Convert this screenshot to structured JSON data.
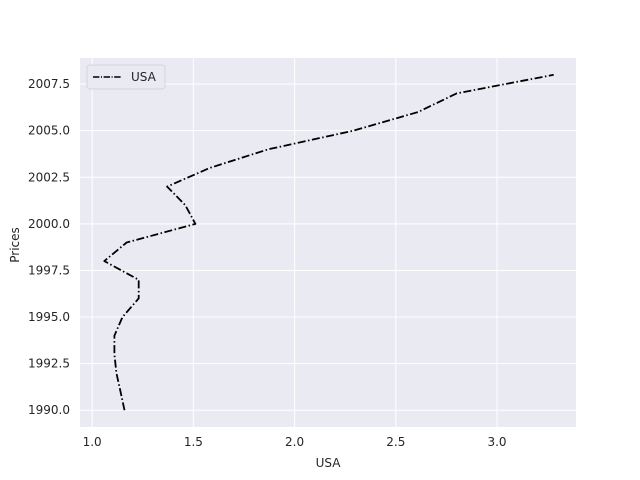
{
  "chart_data": {
    "type": "line",
    "title": "",
    "xlabel": "USA",
    "ylabel": "Prices",
    "xlim": [
      0.94,
      3.39
    ],
    "ylim": [
      1989.1,
      2008.9
    ],
    "xticks": [
      1.0,
      1.5,
      2.0,
      2.5,
      3.0
    ],
    "xtick_labels": [
      "1.0",
      "1.5",
      "2.0",
      "2.5",
      "3.0"
    ],
    "yticks": [
      1990.0,
      1992.5,
      1995.0,
      1997.5,
      2000.0,
      2002.5,
      2005.0,
      2007.5
    ],
    "ytick_labels": [
      "1990.0",
      "1992.5",
      "1995.0",
      "1997.5",
      "2000.0",
      "2002.5",
      "2005.0",
      "2007.5"
    ],
    "grid": true,
    "legend_position": "upper-left",
    "background": "#eaeaf2",
    "series": [
      {
        "name": "USA",
        "color": "#000000",
        "linestyle": "dashdot",
        "points": [
          {
            "x": 1.16,
            "y": 1990
          },
          {
            "x": 1.14,
            "y": 1991
          },
          {
            "x": 1.12,
            "y": 1992
          },
          {
            "x": 1.11,
            "y": 1993
          },
          {
            "x": 1.11,
            "y": 1994
          },
          {
            "x": 1.15,
            "y": 1995
          },
          {
            "x": 1.23,
            "y": 1996
          },
          {
            "x": 1.23,
            "y": 1997
          },
          {
            "x": 1.06,
            "y": 1998
          },
          {
            "x": 1.17,
            "y": 1999
          },
          {
            "x": 1.51,
            "y": 2000
          },
          {
            "x": 1.46,
            "y": 2001
          },
          {
            "x": 1.37,
            "y": 2002
          },
          {
            "x": 1.58,
            "y": 2003
          },
          {
            "x": 1.87,
            "y": 2004
          },
          {
            "x": 2.29,
            "y": 2005
          },
          {
            "x": 2.61,
            "y": 2006
          },
          {
            "x": 2.8,
            "y": 2007
          },
          {
            "x": 3.28,
            "y": 2008
          }
        ]
      }
    ]
  }
}
